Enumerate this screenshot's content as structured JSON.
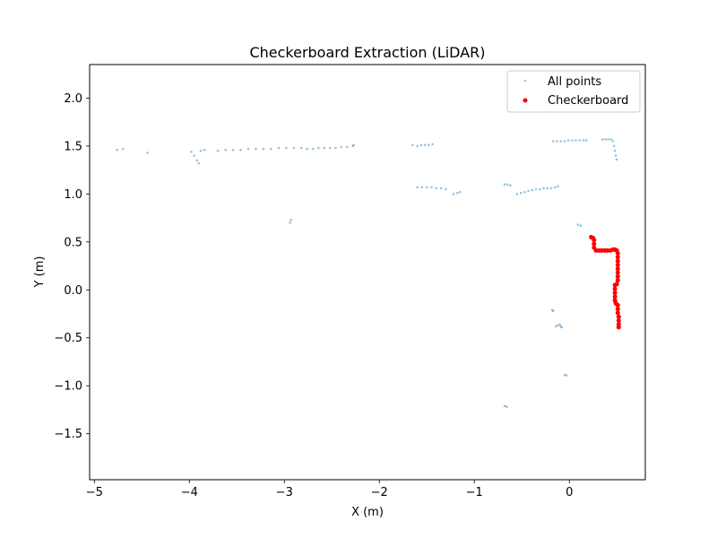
{
  "chart_data": {
    "type": "scatter",
    "title": "Checkerboard Extraction (LiDAR)",
    "xlabel": "X (m)",
    "ylabel": "Y (m)",
    "xlim": [
      -5.05,
      0.8
    ],
    "ylim": [
      -1.98,
      2.35
    ],
    "xticks": [
      -5,
      -4,
      -3,
      -2,
      -1,
      0
    ],
    "xtick_labels": [
      "−5",
      "−4",
      "−3",
      "−2",
      "−1",
      "0"
    ],
    "yticks": [
      -1.5,
      -1.0,
      -0.5,
      0.0,
      0.5,
      1.0,
      1.5,
      2.0
    ],
    "ytick_labels": [
      "−1.5",
      "−1.0",
      "−0.5",
      "0.0",
      "0.5",
      "1.0",
      "1.5",
      "2.0"
    ],
    "grid": false,
    "legend_position": "top-right",
    "series": [
      {
        "name": "All points",
        "color": "#1f77b4",
        "marker": "small-dot",
        "points": [
          [
            -4.76,
            1.46
          ],
          [
            -4.7,
            1.47
          ],
          [
            -4.44,
            1.43
          ],
          [
            -3.98,
            1.44
          ],
          [
            -3.95,
            1.4
          ],
          [
            -3.92,
            1.35
          ],
          [
            -3.9,
            1.32
          ],
          [
            -3.88,
            1.45
          ],
          [
            -3.84,
            1.46
          ],
          [
            -3.7,
            1.45
          ],
          [
            -3.62,
            1.46
          ],
          [
            -3.54,
            1.46
          ],
          [
            -3.46,
            1.46
          ],
          [
            -3.38,
            1.47
          ],
          [
            -3.3,
            1.47
          ],
          [
            -3.22,
            1.47
          ],
          [
            -3.14,
            1.47
          ],
          [
            -3.06,
            1.48
          ],
          [
            -2.98,
            1.48
          ],
          [
            -2.9,
            1.48
          ],
          [
            -2.82,
            1.48
          ],
          [
            -2.76,
            1.47
          ],
          [
            -2.7,
            1.47
          ],
          [
            -2.64,
            1.48
          ],
          [
            -2.58,
            1.48
          ],
          [
            -2.52,
            1.48
          ],
          [
            -2.46,
            1.48
          ],
          [
            -2.4,
            1.49
          ],
          [
            -2.34,
            1.49
          ],
          [
            -2.28,
            1.5
          ],
          [
            -2.27,
            1.51
          ],
          [
            -2.94,
            0.7
          ],
          [
            -2.93,
            0.73
          ],
          [
            -1.65,
            1.51
          ],
          [
            -1.6,
            1.5
          ],
          [
            -1.56,
            1.51
          ],
          [
            -1.52,
            1.51
          ],
          [
            -1.48,
            1.51
          ],
          [
            -1.44,
            1.52
          ],
          [
            -1.6,
            1.07
          ],
          [
            -1.55,
            1.07
          ],
          [
            -1.5,
            1.07
          ],
          [
            -1.45,
            1.07
          ],
          [
            -1.4,
            1.06
          ],
          [
            -1.35,
            1.06
          ],
          [
            -1.3,
            1.05
          ],
          [
            -1.22,
            1.0
          ],
          [
            -1.18,
            1.01
          ],
          [
            -1.15,
            1.02
          ],
          [
            -0.68,
            1.1
          ],
          [
            -0.65,
            1.1
          ],
          [
            -0.62,
            1.09
          ],
          [
            -0.55,
            1.0
          ],
          [
            -0.51,
            1.01
          ],
          [
            -0.47,
            1.02
          ],
          [
            -0.43,
            1.03
          ],
          [
            -0.39,
            1.04
          ],
          [
            -0.35,
            1.05
          ],
          [
            -0.31,
            1.05
          ],
          [
            -0.27,
            1.06
          ],
          [
            -0.23,
            1.06
          ],
          [
            -0.19,
            1.06
          ],
          [
            -0.15,
            1.07
          ],
          [
            -0.12,
            1.08
          ],
          [
            -0.17,
            1.55
          ],
          [
            -0.13,
            1.55
          ],
          [
            -0.09,
            1.55
          ],
          [
            -0.05,
            1.55
          ],
          [
            -0.01,
            1.56
          ],
          [
            0.03,
            1.56
          ],
          [
            0.07,
            1.56
          ],
          [
            0.11,
            1.56
          ],
          [
            0.15,
            1.56
          ],
          [
            0.18,
            1.56
          ],
          [
            0.35,
            1.57
          ],
          [
            0.38,
            1.57
          ],
          [
            0.41,
            1.57
          ],
          [
            0.44,
            1.57
          ],
          [
            0.46,
            1.55
          ],
          [
            0.47,
            1.5
          ],
          [
            0.48,
            1.45
          ],
          [
            0.49,
            1.4
          ],
          [
            0.5,
            1.36
          ],
          [
            0.09,
            0.68
          ],
          [
            0.12,
            0.67
          ],
          [
            -0.18,
            -0.21
          ],
          [
            -0.17,
            -0.22
          ],
          [
            -0.14,
            -0.38
          ],
          [
            -0.12,
            -0.37
          ],
          [
            -0.1,
            -0.36
          ],
          [
            -0.09,
            -0.38
          ],
          [
            -0.08,
            -0.39
          ],
          [
            -0.05,
            -0.89
          ],
          [
            -0.03,
            -0.89
          ],
          [
            -0.68,
            -1.21
          ],
          [
            -0.66,
            -1.22
          ]
        ]
      },
      {
        "name": "Checkerboard",
        "color": "#ff0000",
        "marker": "dot",
        "points": [
          [
            0.23,
            0.55
          ],
          [
            0.25,
            0.54
          ],
          [
            0.26,
            0.52
          ],
          [
            0.26,
            0.48
          ],
          [
            0.26,
            0.44
          ],
          [
            0.28,
            0.41
          ],
          [
            0.31,
            0.41
          ],
          [
            0.34,
            0.41
          ],
          [
            0.37,
            0.41
          ],
          [
            0.4,
            0.41
          ],
          [
            0.43,
            0.41
          ],
          [
            0.46,
            0.42
          ],
          [
            0.48,
            0.42
          ],
          [
            0.5,
            0.41
          ],
          [
            0.51,
            0.38
          ],
          [
            0.51,
            0.34
          ],
          [
            0.51,
            0.3
          ],
          [
            0.51,
            0.26
          ],
          [
            0.51,
            0.22
          ],
          [
            0.51,
            0.18
          ],
          [
            0.51,
            0.14
          ],
          [
            0.51,
            0.1
          ],
          [
            0.5,
            0.06
          ],
          [
            0.48,
            0.05
          ],
          [
            0.48,
            0.01
          ],
          [
            0.48,
            -0.03
          ],
          [
            0.48,
            -0.07
          ],
          [
            0.48,
            -0.11
          ],
          [
            0.49,
            -0.14
          ],
          [
            0.51,
            -0.16
          ],
          [
            0.51,
            -0.2
          ],
          [
            0.51,
            -0.24
          ],
          [
            0.52,
            -0.28
          ],
          [
            0.52,
            -0.32
          ],
          [
            0.52,
            -0.36
          ],
          [
            0.52,
            -0.39
          ]
        ]
      }
    ]
  }
}
